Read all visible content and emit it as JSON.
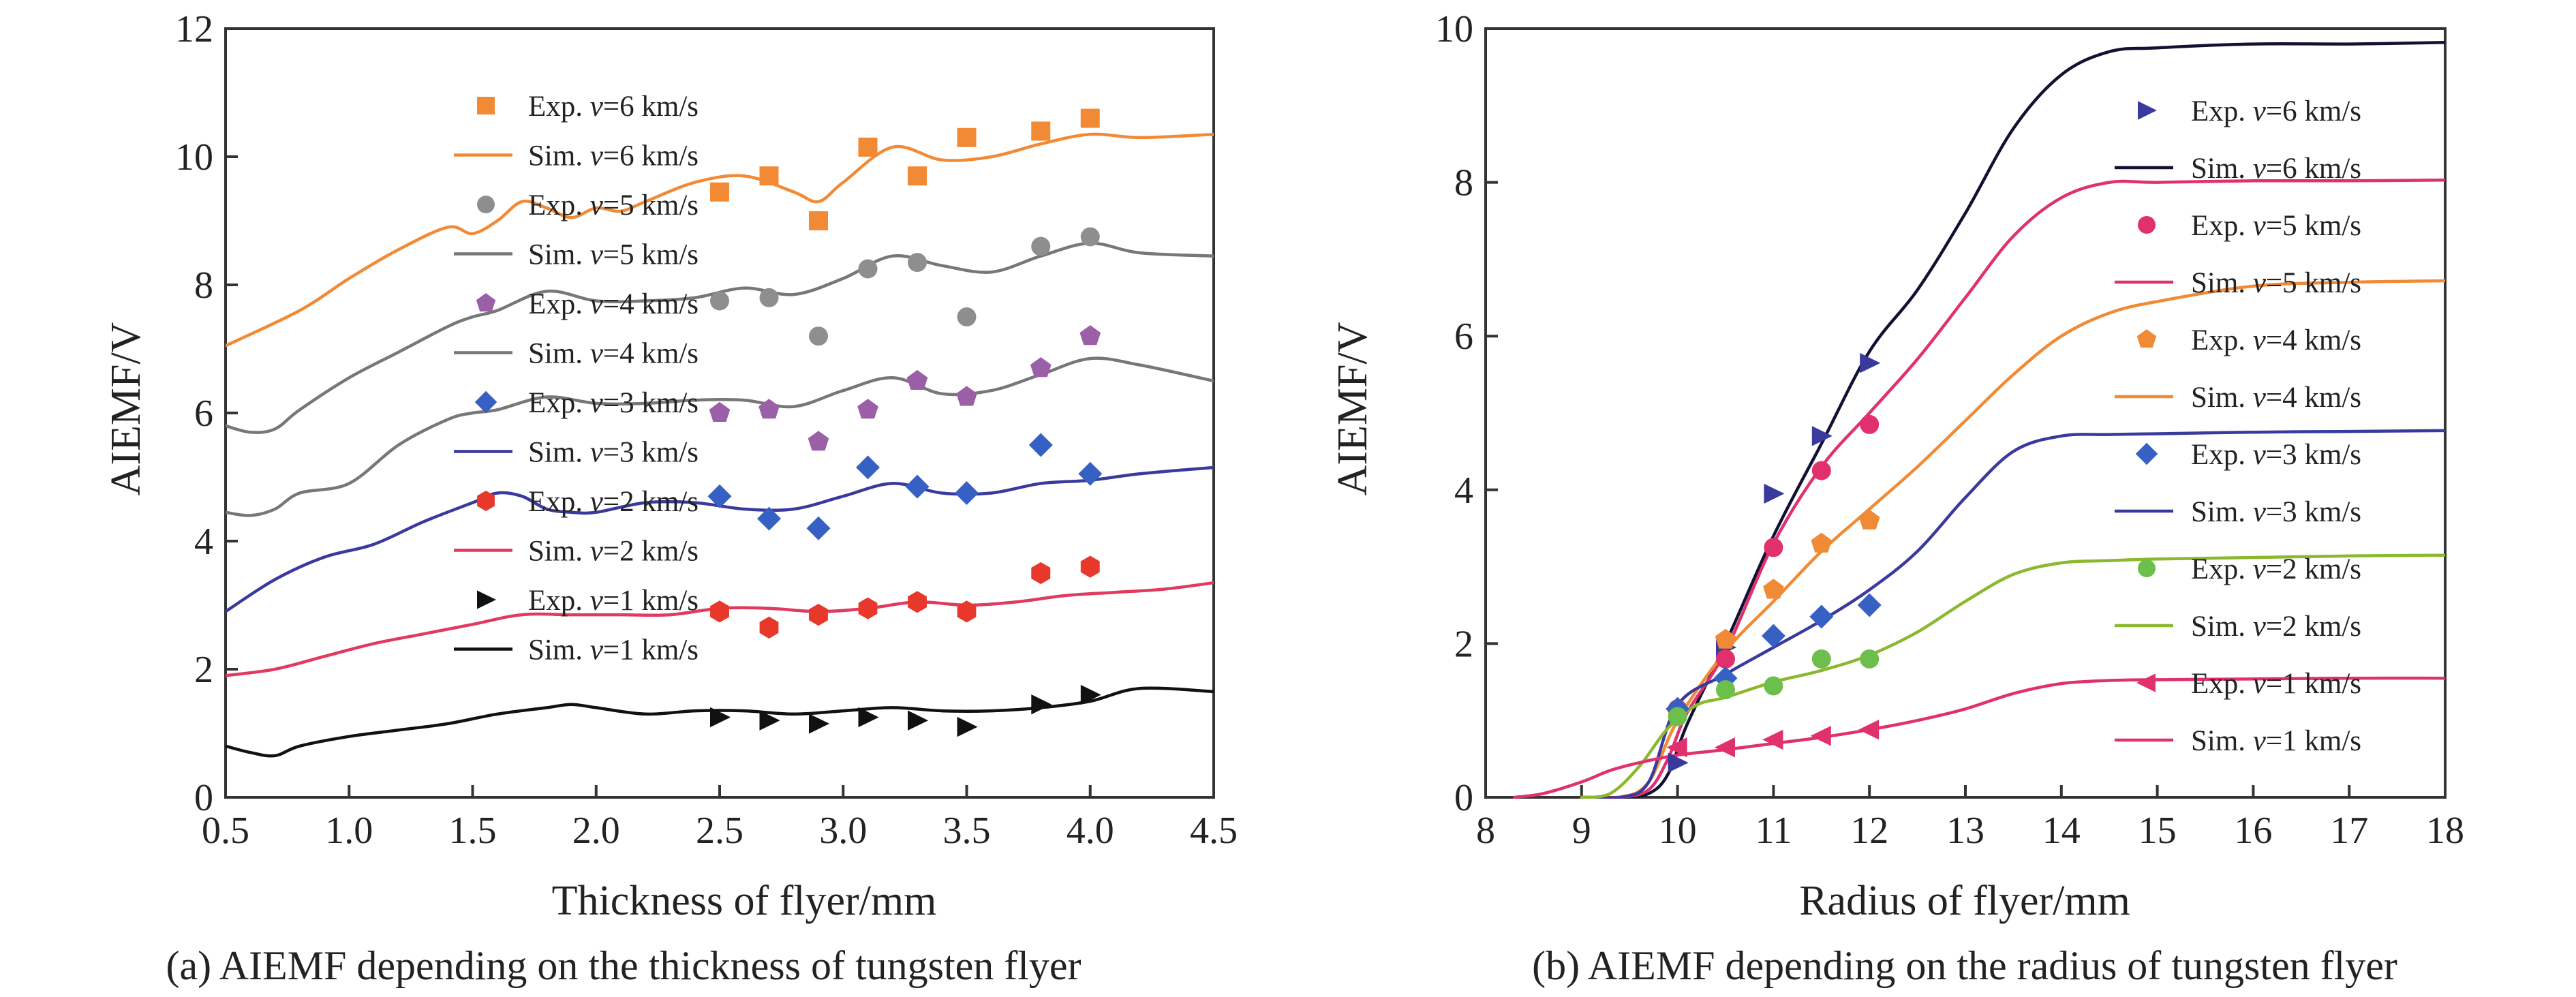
{
  "chart_data": [
    {
      "type": "line",
      "caption": "(a) AIEMF depending on the thickness of tungsten flyer",
      "xlabel": "Thickness of flyer/mm",
      "ylabel": "AIEMF/V",
      "xlim": [
        0.5,
        4.5
      ],
      "ylim": [
        0,
        12
      ],
      "xticks": [
        "0.5",
        "1.0",
        "1.5",
        "2.0",
        "2.5",
        "3.0",
        "3.5",
        "4.0",
        "4.5"
      ],
      "yticks": [
        "0",
        "2",
        "4",
        "6",
        "8",
        "10",
        "12"
      ],
      "grid": false,
      "legend_position": "left, stacked",
      "series": [
        {
          "name": "Exp. v=6 km/s",
          "kind": "scatter",
          "marker": "square",
          "color": "#f28a35",
          "x": [
            2.5,
            2.7,
            2.9,
            3.1,
            3.3,
            3.5,
            3.8,
            4.0
          ],
          "y": [
            9.45,
            9.7,
            9.0,
            10.15,
            9.7,
            10.3,
            10.4,
            10.6
          ]
        },
        {
          "name": "Sim. v=6 km/s",
          "kind": "line",
          "color": "#f28a35",
          "x": [
            0.5,
            0.8,
            1.0,
            1.2,
            1.4,
            1.5,
            1.6,
            1.7,
            1.8,
            1.9,
            2.0,
            2.1,
            2.2,
            2.4,
            2.6,
            2.8,
            2.9,
            3.0,
            3.2,
            3.4,
            3.6,
            3.8,
            4.0,
            4.2,
            4.5
          ],
          "y": [
            7.05,
            7.6,
            8.1,
            8.55,
            8.9,
            8.8,
            9.0,
            9.3,
            9.2,
            9.05,
            9.2,
            9.15,
            9.3,
            9.6,
            9.7,
            9.45,
            9.3,
            9.6,
            10.15,
            9.95,
            10.0,
            10.2,
            10.35,
            10.3,
            10.35
          ]
        },
        {
          "name": "Exp. v=5 km/s",
          "kind": "scatter",
          "marker": "circle",
          "color": "#8e8e8e",
          "x": [
            2.5,
            2.7,
            2.9,
            3.1,
            3.3,
            3.5,
            3.8,
            4.0
          ],
          "y": [
            7.75,
            7.8,
            7.2,
            8.25,
            8.35,
            7.5,
            8.6,
            8.75
          ]
        },
        {
          "name": "Sim. v=5 km/s",
          "kind": "line",
          "color": "#777777",
          "x": [
            0.5,
            0.6,
            0.7,
            0.8,
            1.0,
            1.2,
            1.4,
            1.5,
            1.6,
            1.8,
            2.0,
            2.2,
            2.4,
            2.6,
            2.8,
            3.0,
            3.2,
            3.4,
            3.6,
            3.8,
            4.0,
            4.2,
            4.5
          ],
          "y": [
            5.8,
            5.7,
            5.75,
            6.05,
            6.55,
            6.95,
            7.35,
            7.5,
            7.6,
            7.9,
            7.75,
            7.75,
            7.8,
            7.95,
            7.85,
            8.1,
            8.45,
            8.3,
            8.2,
            8.45,
            8.65,
            8.5,
            8.45
          ]
        },
        {
          "name": "Exp. v=4 km/s",
          "kind": "scatter",
          "marker": "pentagon",
          "color": "#9b5fa8",
          "x": [
            2.5,
            2.7,
            2.9,
            3.1,
            3.3,
            3.5,
            3.8,
            4.0
          ],
          "y": [
            6.0,
            6.05,
            5.55,
            6.05,
            6.5,
            6.25,
            6.7,
            7.2
          ]
        },
        {
          "name": "Sim. v=4 km/s",
          "kind": "line",
          "color": "#777777",
          "x": [
            0.5,
            0.6,
            0.7,
            0.8,
            1.0,
            1.2,
            1.4,
            1.5,
            1.6,
            1.8,
            2.0,
            2.2,
            2.4,
            2.6,
            2.8,
            3.0,
            3.2,
            3.4,
            3.6,
            3.8,
            4.0,
            4.2,
            4.5
          ],
          "y": [
            4.45,
            4.4,
            4.5,
            4.75,
            4.9,
            5.5,
            5.9,
            6.0,
            6.05,
            6.25,
            6.15,
            6.15,
            6.2,
            6.2,
            6.1,
            6.35,
            6.55,
            6.3,
            6.35,
            6.6,
            6.85,
            6.75,
            6.5
          ]
        },
        {
          "name": "Exp. v=3 km/s",
          "kind": "scatter",
          "marker": "diamond",
          "color": "#3760c4",
          "x": [
            2.5,
            2.7,
            2.9,
            3.1,
            3.3,
            3.5,
            3.8,
            4.0
          ],
          "y": [
            4.7,
            4.35,
            4.2,
            5.15,
            4.85,
            4.75,
            5.5,
            5.05
          ]
        },
        {
          "name": "Sim. v=3 km/s",
          "kind": "line",
          "color": "#3a3a9e",
          "x": [
            0.5,
            0.7,
            0.9,
            1.1,
            1.3,
            1.5,
            1.6,
            1.7,
            1.8,
            1.9,
            2.0,
            2.2,
            2.4,
            2.6,
            2.8,
            3.0,
            3.2,
            3.4,
            3.6,
            3.8,
            4.0,
            4.2,
            4.5
          ],
          "y": [
            2.9,
            3.4,
            3.75,
            3.95,
            4.3,
            4.6,
            4.75,
            4.7,
            4.5,
            4.45,
            4.45,
            4.6,
            4.6,
            4.5,
            4.5,
            4.7,
            4.9,
            4.75,
            4.75,
            4.9,
            4.95,
            5.05,
            5.15
          ]
        },
        {
          "name": "Exp. v=2 km/s",
          "kind": "scatter",
          "marker": "hexagon",
          "color": "#e8372b",
          "x": [
            2.5,
            2.7,
            2.9,
            3.1,
            3.3,
            3.5,
            3.8,
            4.0
          ],
          "y": [
            2.9,
            2.65,
            2.85,
            2.95,
            3.05,
            2.9,
            3.5,
            3.6
          ]
        },
        {
          "name": "Sim. v=2 km/s",
          "kind": "line",
          "color": "#e03a5e",
          "x": [
            0.5,
            0.7,
            0.9,
            1.1,
            1.3,
            1.5,
            1.7,
            1.9,
            2.1,
            2.3,
            2.5,
            2.7,
            2.9,
            3.1,
            3.3,
            3.5,
            3.7,
            3.9,
            4.1,
            4.3,
            4.5
          ],
          "y": [
            1.9,
            2.0,
            2.2,
            2.4,
            2.55,
            2.7,
            2.85,
            2.85,
            2.85,
            2.85,
            2.95,
            2.95,
            2.9,
            2.95,
            3.05,
            3.0,
            3.05,
            3.15,
            3.2,
            3.25,
            3.35
          ]
        },
        {
          "name": "Exp. v=1 km/s",
          "kind": "scatter",
          "marker": "triangle-right",
          "color": "#111111",
          "x": [
            2.5,
            2.7,
            2.9,
            3.1,
            3.3,
            3.5,
            3.8,
            4.0
          ],
          "y": [
            1.25,
            1.2,
            1.15,
            1.25,
            1.2,
            1.1,
            1.45,
            1.6
          ]
        },
        {
          "name": "Sim. v=1 km/s",
          "kind": "line",
          "color": "#111111",
          "x": [
            0.5,
            0.6,
            0.7,
            0.8,
            1.0,
            1.2,
            1.4,
            1.6,
            1.8,
            1.9,
            2.0,
            2.2,
            2.4,
            2.6,
            2.8,
            3.0,
            3.2,
            3.4,
            3.6,
            3.8,
            4.0,
            4.2,
            4.5
          ],
          "y": [
            0.8,
            0.7,
            0.65,
            0.8,
            0.95,
            1.05,
            1.15,
            1.3,
            1.4,
            1.45,
            1.4,
            1.3,
            1.35,
            1.35,
            1.3,
            1.35,
            1.4,
            1.35,
            1.35,
            1.4,
            1.5,
            1.7,
            1.65
          ]
        }
      ]
    },
    {
      "type": "line",
      "caption": "(b) AIEMF depending on the radius of tungsten flyer",
      "xlabel": "Radius of flyer/mm",
      "ylabel": "AIEMF/V",
      "xlim": [
        8,
        18
      ],
      "ylim": [
        0,
        10
      ],
      "xticks": [
        "8",
        "9",
        "10",
        "11",
        "12",
        "13",
        "14",
        "15",
        "16",
        "17",
        "18"
      ],
      "yticks": [
        "0",
        "2",
        "4",
        "6",
        "8",
        "10"
      ],
      "grid": false,
      "legend_position": "right, stacked",
      "series": [
        {
          "name": "Exp. v=6 km/s",
          "kind": "scatter",
          "marker": "triangle-right",
          "color": "#3a3a9e",
          "x": [
            10,
            10.5,
            11,
            11.5,
            12
          ],
          "y": [
            0.45,
            1.95,
            3.95,
            4.7,
            5.65
          ]
        },
        {
          "name": "Sim. v=6 km/s",
          "kind": "line",
          "color": "#111133",
          "x": [
            9.0,
            9.4,
            9.7,
            9.9,
            10.1,
            10.5,
            11.0,
            11.5,
            12.0,
            12.5,
            13.0,
            13.5,
            14.0,
            14.5,
            15.0,
            16.0,
            17.0,
            18.0
          ],
          "y": [
            0,
            0,
            0.05,
            0.3,
            0.95,
            2.0,
            3.4,
            4.6,
            5.8,
            6.6,
            7.6,
            8.7,
            9.4,
            9.7,
            9.75,
            9.8,
            9.8,
            9.82
          ]
        },
        {
          "name": "Exp. v=5 km/s",
          "kind": "scatter",
          "marker": "circle",
          "color": "#e0306e",
          "x": [
            10,
            10.5,
            11,
            11.5,
            12
          ],
          "y": [
            1.15,
            1.8,
            3.25,
            4.25,
            4.85
          ]
        },
        {
          "name": "Sim. v=5 km/s",
          "kind": "line",
          "color": "#e0306e",
          "x": [
            9.0,
            9.4,
            9.7,
            9.9,
            10.1,
            10.5,
            11.0,
            11.5,
            12.0,
            12.5,
            13.0,
            13.5,
            14.0,
            14.5,
            15.0,
            16.0,
            17.0,
            18.0
          ],
          "y": [
            0,
            0,
            0.1,
            0.5,
            1.1,
            1.9,
            3.3,
            4.3,
            5.0,
            5.7,
            6.5,
            7.3,
            7.8,
            8.0,
            8.0,
            8.02,
            8.02,
            8.03
          ]
        },
        {
          "name": "Exp. v=4 km/s",
          "kind": "scatter",
          "marker": "pentagon",
          "color": "#f08a35",
          "x": [
            10,
            10.5,
            11,
            11.5,
            12
          ],
          "y": [
            1.1,
            2.05,
            2.7,
            3.3,
            3.6
          ]
        },
        {
          "name": "Sim. v=4 km/s",
          "kind": "line",
          "color": "#f08a35",
          "x": [
            9.0,
            9.4,
            9.7,
            10.0,
            10.5,
            11.0,
            11.5,
            12.0,
            12.5,
            13.0,
            13.5,
            14.0,
            14.5,
            15.0,
            16.0,
            17.0,
            18.0
          ],
          "y": [
            0,
            0,
            0.2,
            1.0,
            1.9,
            2.55,
            3.2,
            3.75,
            4.3,
            4.9,
            5.5,
            6.0,
            6.3,
            6.45,
            6.65,
            6.7,
            6.72
          ]
        },
        {
          "name": "Exp. v=3 km/s",
          "kind": "scatter",
          "marker": "diamond",
          "color": "#3760c4",
          "x": [
            10,
            10.5,
            11,
            11.5,
            12
          ],
          "y": [
            1.15,
            1.55,
            2.1,
            2.35,
            2.5
          ]
        },
        {
          "name": "Sim. v=3 km/s",
          "kind": "line",
          "color": "#3a3a9e",
          "x": [
            9.0,
            9.4,
            9.7,
            10.0,
            10.5,
            11.0,
            11.5,
            12.0,
            12.5,
            13.0,
            13.5,
            14.0,
            14.5,
            15.0,
            16.0,
            17.0,
            18.0
          ],
          "y": [
            0,
            0,
            0.2,
            1.2,
            1.6,
            1.95,
            2.3,
            2.7,
            3.2,
            3.9,
            4.5,
            4.7,
            4.72,
            4.73,
            4.75,
            4.76,
            4.77
          ]
        },
        {
          "name": "Exp. v=2 km/s",
          "kind": "scatter",
          "marker": "circle",
          "color": "#6cbf4a",
          "x": [
            10,
            10.5,
            11,
            11.5,
            12
          ],
          "y": [
            1.05,
            1.4,
            1.45,
            1.8,
            1.8
          ]
        },
        {
          "name": "Sim. v=2 km/s",
          "kind": "line",
          "color": "#8ab82e",
          "x": [
            9.0,
            9.3,
            9.6,
            9.9,
            10.2,
            10.5,
            11.0,
            11.5,
            12.0,
            12.5,
            13.0,
            13.5,
            14.0,
            14.5,
            15.0,
            16.0,
            17.0,
            18.0
          ],
          "y": [
            0,
            0.05,
            0.4,
            0.9,
            1.2,
            1.3,
            1.5,
            1.65,
            1.85,
            2.15,
            2.55,
            2.9,
            3.05,
            3.08,
            3.1,
            3.12,
            3.14,
            3.15
          ]
        },
        {
          "name": "Exp. v=1 km/s",
          "kind": "scatter",
          "marker": "triangle-left",
          "color": "#e0306e",
          "x": [
            10,
            10.5,
            11,
            11.5,
            12
          ],
          "y": [
            0.65,
            0.65,
            0.75,
            0.8,
            0.88
          ]
        },
        {
          "name": "Sim. v=1 km/s",
          "kind": "line",
          "color": "#e0306e",
          "x": [
            8.3,
            8.6,
            9.0,
            9.3,
            9.6,
            10.0,
            10.5,
            11.0,
            11.5,
            12.0,
            12.5,
            13.0,
            13.5,
            14.0,
            14.5,
            15.0,
            16.0,
            17.0,
            18.0
          ],
          "y": [
            0,
            0.05,
            0.2,
            0.35,
            0.45,
            0.55,
            0.62,
            0.7,
            0.78,
            0.88,
            1.0,
            1.15,
            1.35,
            1.48,
            1.52,
            1.53,
            1.54,
            1.55,
            1.55
          ]
        }
      ]
    }
  ]
}
